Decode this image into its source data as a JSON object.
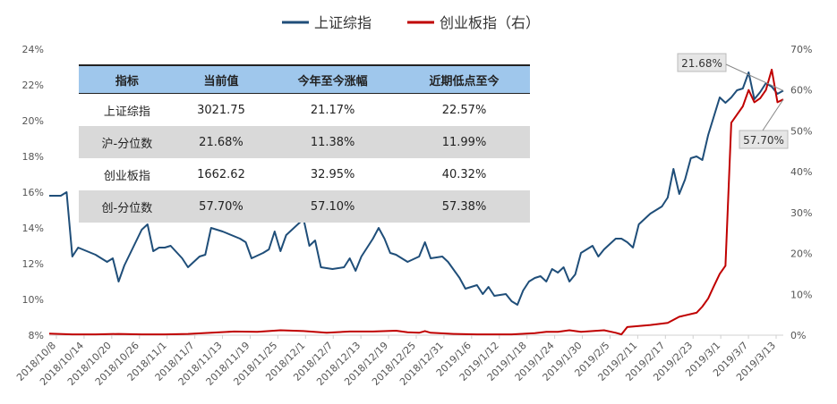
{
  "chart_data": {
    "type": "line",
    "legend": [
      "上证综指",
      "创业板指（右）"
    ],
    "legend_position": "top",
    "grid": false,
    "x_tick_labels": [
      "2018/10/8",
      "2018/10/14",
      "2018/10/20",
      "2018/10/26",
      "2018/11/1",
      "2018/11/7",
      "2018/11/13",
      "2018/11/19",
      "2018/11/25",
      "2018/12/1",
      "2018/12/7",
      "2018/12/13",
      "2018/12/19",
      "2018/12/25",
      "2018/12/31",
      "2019/1/6",
      "2019/1/12",
      "2019/1/18",
      "2019/1/24",
      "2019/1/30",
      "2019/2/5",
      "2019/2/11",
      "2019/2/17",
      "2019/2/23",
      "2019/3/1",
      "2019/3/7",
      "2019/3/13"
    ],
    "y_left_ticks": [
      "8%",
      "10%",
      "12%",
      "14%",
      "16%",
      "18%",
      "20%",
      "22%",
      "24%"
    ],
    "y_left_range": [
      8,
      24
    ],
    "y_right_ticks": [
      "0%",
      "10%",
      "20%",
      "30%",
      "40%",
      "50%",
      "60%",
      "70%"
    ],
    "y_right_range": [
      0,
      70
    ],
    "series": [
      {
        "name": "上证综指",
        "axis": "left",
        "color": "#1f4e79",
        "points": [
          [
            0,
            15.8
          ],
          [
            2,
            15.8
          ],
          [
            3,
            16.0
          ],
          [
            4,
            12.4
          ],
          [
            5,
            12.9
          ],
          [
            8,
            12.5
          ],
          [
            10,
            12.1
          ],
          [
            11,
            12.3
          ],
          [
            12,
            11.0
          ],
          [
            13,
            11.9
          ],
          [
            16,
            13.9
          ],
          [
            17,
            14.2
          ],
          [
            18,
            12.7
          ],
          [
            19,
            12.9
          ],
          [
            20,
            12.9
          ],
          [
            21,
            13.0
          ],
          [
            23,
            12.3
          ],
          [
            24,
            11.8
          ],
          [
            26,
            12.4
          ],
          [
            27,
            12.5
          ],
          [
            28,
            14.0
          ],
          [
            30,
            13.8
          ],
          [
            33,
            13.4
          ],
          [
            34,
            13.2
          ],
          [
            35,
            12.3
          ],
          [
            37,
            12.6
          ],
          [
            38,
            12.8
          ],
          [
            39,
            13.8
          ],
          [
            40,
            12.7
          ],
          [
            41,
            13.6
          ],
          [
            44,
            14.5
          ],
          [
            45,
            13.0
          ],
          [
            46,
            13.3
          ],
          [
            47,
            11.8
          ],
          [
            49,
            11.7
          ],
          [
            51,
            11.8
          ],
          [
            52,
            12.3
          ],
          [
            53,
            11.6
          ],
          [
            54,
            12.4
          ],
          [
            56,
            13.4
          ],
          [
            57,
            14.0
          ],
          [
            58,
            13.4
          ],
          [
            59,
            12.6
          ],
          [
            60,
            12.5
          ],
          [
            62,
            12.1
          ],
          [
            64,
            12.4
          ],
          [
            65,
            13.2
          ],
          [
            66,
            12.3
          ],
          [
            68,
            12.4
          ],
          [
            69,
            12.1
          ],
          [
            71,
            11.2
          ],
          [
            72,
            10.6
          ],
          [
            74,
            10.8
          ],
          [
            75,
            10.3
          ],
          [
            76,
            10.7
          ],
          [
            77,
            10.2
          ],
          [
            79,
            10.3
          ],
          [
            80,
            9.9
          ],
          [
            81,
            9.7
          ],
          [
            82,
            10.5
          ],
          [
            83,
            11.0
          ],
          [
            84,
            11.2
          ],
          [
            85,
            11.3
          ],
          [
            86,
            11.0
          ],
          [
            87,
            11.7
          ],
          [
            88,
            11.5
          ],
          [
            89,
            11.8
          ],
          [
            90,
            11.0
          ],
          [
            91,
            11.4
          ],
          [
            92,
            12.6
          ],
          [
            94,
            13.0
          ],
          [
            95,
            12.4
          ],
          [
            96,
            12.8
          ],
          [
            98,
            13.4
          ],
          [
            99,
            13.4
          ],
          [
            100,
            13.2
          ],
          [
            101,
            12.9
          ],
          [
            102,
            14.2
          ],
          [
            104,
            14.8
          ],
          [
            106,
            15.2
          ],
          [
            107,
            15.7
          ],
          [
            108,
            17.3
          ],
          [
            109,
            15.9
          ],
          [
            110,
            16.7
          ],
          [
            111,
            17.9
          ],
          [
            112,
            18.0
          ],
          [
            113,
            17.8
          ],
          [
            114,
            19.2
          ],
          [
            116,
            21.3
          ],
          [
            117,
            21.0
          ],
          [
            118,
            21.3
          ],
          [
            119,
            21.7
          ],
          [
            120,
            21.8
          ],
          [
            121,
            22.7
          ],
          [
            122,
            21.2
          ],
          [
            123,
            21.6
          ],
          [
            124,
            22.1
          ],
          [
            125,
            21.9
          ],
          [
            126,
            21.5
          ],
          [
            127,
            21.68
          ]
        ]
      },
      {
        "name": "创业板指（右）",
        "axis": "right",
        "color": "#c00000",
        "points": [
          [
            0,
            0.4
          ],
          [
            4,
            0.2
          ],
          [
            8,
            0.2
          ],
          [
            12,
            0.3
          ],
          [
            16,
            0.2
          ],
          [
            20,
            0.2
          ],
          [
            24,
            0.3
          ],
          [
            28,
            0.6
          ],
          [
            32,
            0.9
          ],
          [
            36,
            0.8
          ],
          [
            40,
            1.2
          ],
          [
            44,
            1.0
          ],
          [
            48,
            0.6
          ],
          [
            52,
            0.9
          ],
          [
            56,
            0.9
          ],
          [
            60,
            1.1
          ],
          [
            62,
            0.7
          ],
          [
            64,
            0.6
          ],
          [
            65,
            1.0
          ],
          [
            66,
            0.6
          ],
          [
            70,
            0.3
          ],
          [
            74,
            0.2
          ],
          [
            80,
            0.2
          ],
          [
            84,
            0.5
          ],
          [
            86,
            0.8
          ],
          [
            88,
            0.8
          ],
          [
            90,
            1.2
          ],
          [
            92,
            0.8
          ],
          [
            94,
            1.0
          ],
          [
            96,
            1.2
          ],
          [
            98,
            0.6
          ],
          [
            99,
            0.2
          ],
          [
            100,
            2.0
          ],
          [
            104,
            2.5
          ],
          [
            107,
            3.0
          ],
          [
            109,
            4.5
          ],
          [
            112,
            5.5
          ],
          [
            113,
            7.0
          ],
          [
            114,
            9.0
          ],
          [
            115,
            12.0
          ],
          [
            116,
            15.0
          ],
          [
            117,
            17.0
          ],
          [
            118,
            52.0
          ],
          [
            120,
            56.0
          ],
          [
            121,
            60.0
          ],
          [
            122,
            57.0
          ],
          [
            123,
            58.0
          ],
          [
            124,
            60.0
          ],
          [
            125,
            65.0
          ],
          [
            126,
            57.0
          ],
          [
            127,
            57.7
          ]
        ]
      }
    ],
    "callouts": [
      {
        "label": "21.68%",
        "series": 0,
        "point": [
          127,
          21.68
        ]
      },
      {
        "label": "57.70%",
        "series": 1,
        "point": [
          127,
          57.7
        ]
      }
    ],
    "table": {
      "headers": [
        "指标",
        "当前值",
        "今年至今涨幅",
        "近期低点至今"
      ],
      "rows": [
        [
          "上证综指",
          "3021.75",
          "21.17%",
          "22.57%"
        ],
        [
          "沪-分位数",
          "21.68%",
          "11.38%",
          "11.99%"
        ],
        [
          "创业板指",
          "1662.62",
          "32.95%",
          "40.32%"
        ],
        [
          "创-分位数",
          "57.70%",
          "57.10%",
          "57.38%"
        ]
      ]
    }
  }
}
